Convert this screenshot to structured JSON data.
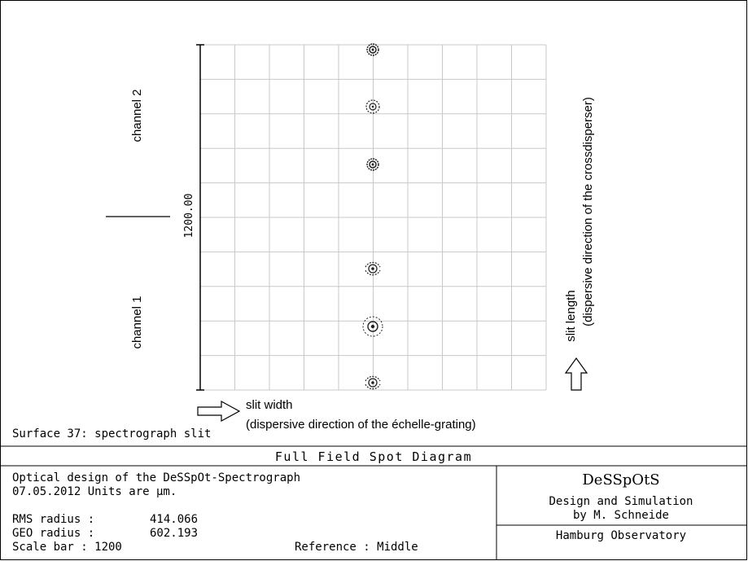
{
  "diagram": {
    "channel_2_label": "channel 2",
    "channel_1_label": "channel 1",
    "scale_label": "1200.00",
    "slit_width_label": "slit width",
    "slit_width_sub": "(dispersive direction of the échelle-grating)",
    "slit_length_label": "slit length",
    "slit_length_sub": "(dispersive direction of the crossdisperser)",
    "surface_label": "Surface 37: spectrograph slit",
    "spots": [
      {
        "style": "dense"
      },
      {
        "style": "ring"
      },
      {
        "style": "dense"
      },
      {
        "style": "arc"
      },
      {
        "style": "wide"
      },
      {
        "style": "arc"
      }
    ]
  },
  "title_block": {
    "title": "Full Field Spot Diagram",
    "design_line": "Optical design of the DeSSpOt-Spectrograph",
    "date_units": "07.05.2012  Units are µm.",
    "rms_label": "RMS radius :",
    "rms_value": "414.066",
    "geo_label": "GEO radius :",
    "geo_value": "602.193",
    "scale_label": "Scale bar  : 1200",
    "reference_label": "Reference  : Middle",
    "logo": "DeSSpOtS",
    "design_sim_1": "Design and Simulation",
    "design_sim_2": "by M. Schneide",
    "observatory": "Hamburg Observatory"
  },
  "colors": {
    "grid": "#c8c8c8",
    "line": "#000000",
    "spot": "#222222"
  }
}
